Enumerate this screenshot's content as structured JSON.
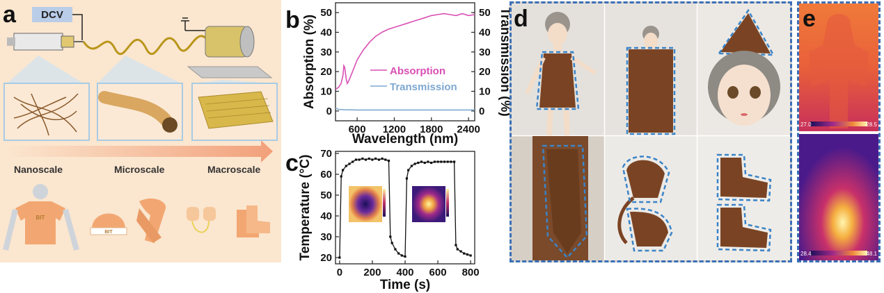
{
  "panels": {
    "a": "a",
    "b": "b",
    "c": "c",
    "d": "d",
    "e": "e"
  },
  "panel_a": {
    "dcv_label": "DCV",
    "scales": [
      "Nanoscale",
      "Microscale",
      "Macroscale"
    ],
    "garment_text": "BIT"
  },
  "panel_e": {
    "top_scale_min": "27.0",
    "top_scale_max": "28.5",
    "bottom_scale_min": "28.4",
    "bottom_scale_max": "48.1"
  },
  "chart_data": [
    {
      "id": "b",
      "type": "line",
      "xlabel": "Wavelength (nm)",
      "ylabel": "Absorption (%)",
      "y2label": "Transmission (%)",
      "xlim": [
        250,
        2500
      ],
      "ylim": [
        -5,
        55
      ],
      "xticks": [
        600,
        1200,
        1800,
        2400
      ],
      "yticks": [
        0,
        10,
        20,
        30,
        40,
        50
      ],
      "series": [
        {
          "name": "Absorption",
          "color": "#d94fb4",
          "x": [
            250,
            300,
            340,
            370,
            385,
            400,
            420,
            440,
            460,
            500,
            550,
            600,
            700,
            800,
            900,
            1000,
            1100,
            1200,
            1300,
            1400,
            1500,
            1600,
            1700,
            1800,
            1900,
            2000,
            2100,
            2200,
            2300,
            2400,
            2500
          ],
          "y": [
            11,
            12,
            14,
            18,
            23,
            22,
            17,
            14,
            15,
            18,
            22,
            26,
            31,
            35,
            38,
            40,
            41.5,
            42.5,
            43.5,
            44.5,
            45.5,
            46.5,
            47.5,
            48.5,
            49,
            49.5,
            49,
            48.5,
            49.5,
            48.5,
            49
          ]
        },
        {
          "name": "Transmission",
          "color": "#7fa8d0",
          "x": [
            250,
            300,
            400,
            600,
            1000,
            1500,
            2000,
            2500
          ],
          "y": [
            1.5,
            0.8,
            0.6,
            0.5,
            0.5,
            0.5,
            0.5,
            0.5
          ]
        }
      ]
    },
    {
      "id": "c",
      "type": "line",
      "xlabel": "Time (s)",
      "ylabel": "Temperature (°C)",
      "xlim": [
        -25,
        825
      ],
      "ylim": [
        17,
        71
      ],
      "xticks": [
        0,
        200,
        400,
        600,
        800
      ],
      "yticks": [
        20,
        30,
        40,
        50,
        60,
        70
      ],
      "series": [
        {
          "name": "Temperature",
          "color": "#111111",
          "x": [
            0,
            10,
            20,
            40,
            60,
            80,
            100,
            120,
            140,
            160,
            180,
            200,
            220,
            240,
            260,
            280,
            300,
            310,
            320,
            340,
            360,
            380,
            400,
            410,
            420,
            440,
            460,
            480,
            500,
            520,
            540,
            560,
            580,
            600,
            620,
            640,
            660,
            680,
            700,
            710,
            720,
            740,
            760,
            780,
            800
          ],
          "y": [
            20,
            59,
            62,
            64,
            65,
            66,
            67,
            67,
            67.5,
            67,
            67.5,
            67,
            67.5,
            67,
            67.5,
            67,
            66.5,
            30,
            27,
            24,
            22,
            21,
            20.5,
            58,
            62,
            64,
            65,
            65.5,
            66,
            65.5,
            66,
            65.5,
            66,
            66,
            66,
            66,
            66,
            66,
            66,
            26,
            24,
            23,
            22,
            21.5,
            21
          ]
        }
      ]
    }
  ]
}
